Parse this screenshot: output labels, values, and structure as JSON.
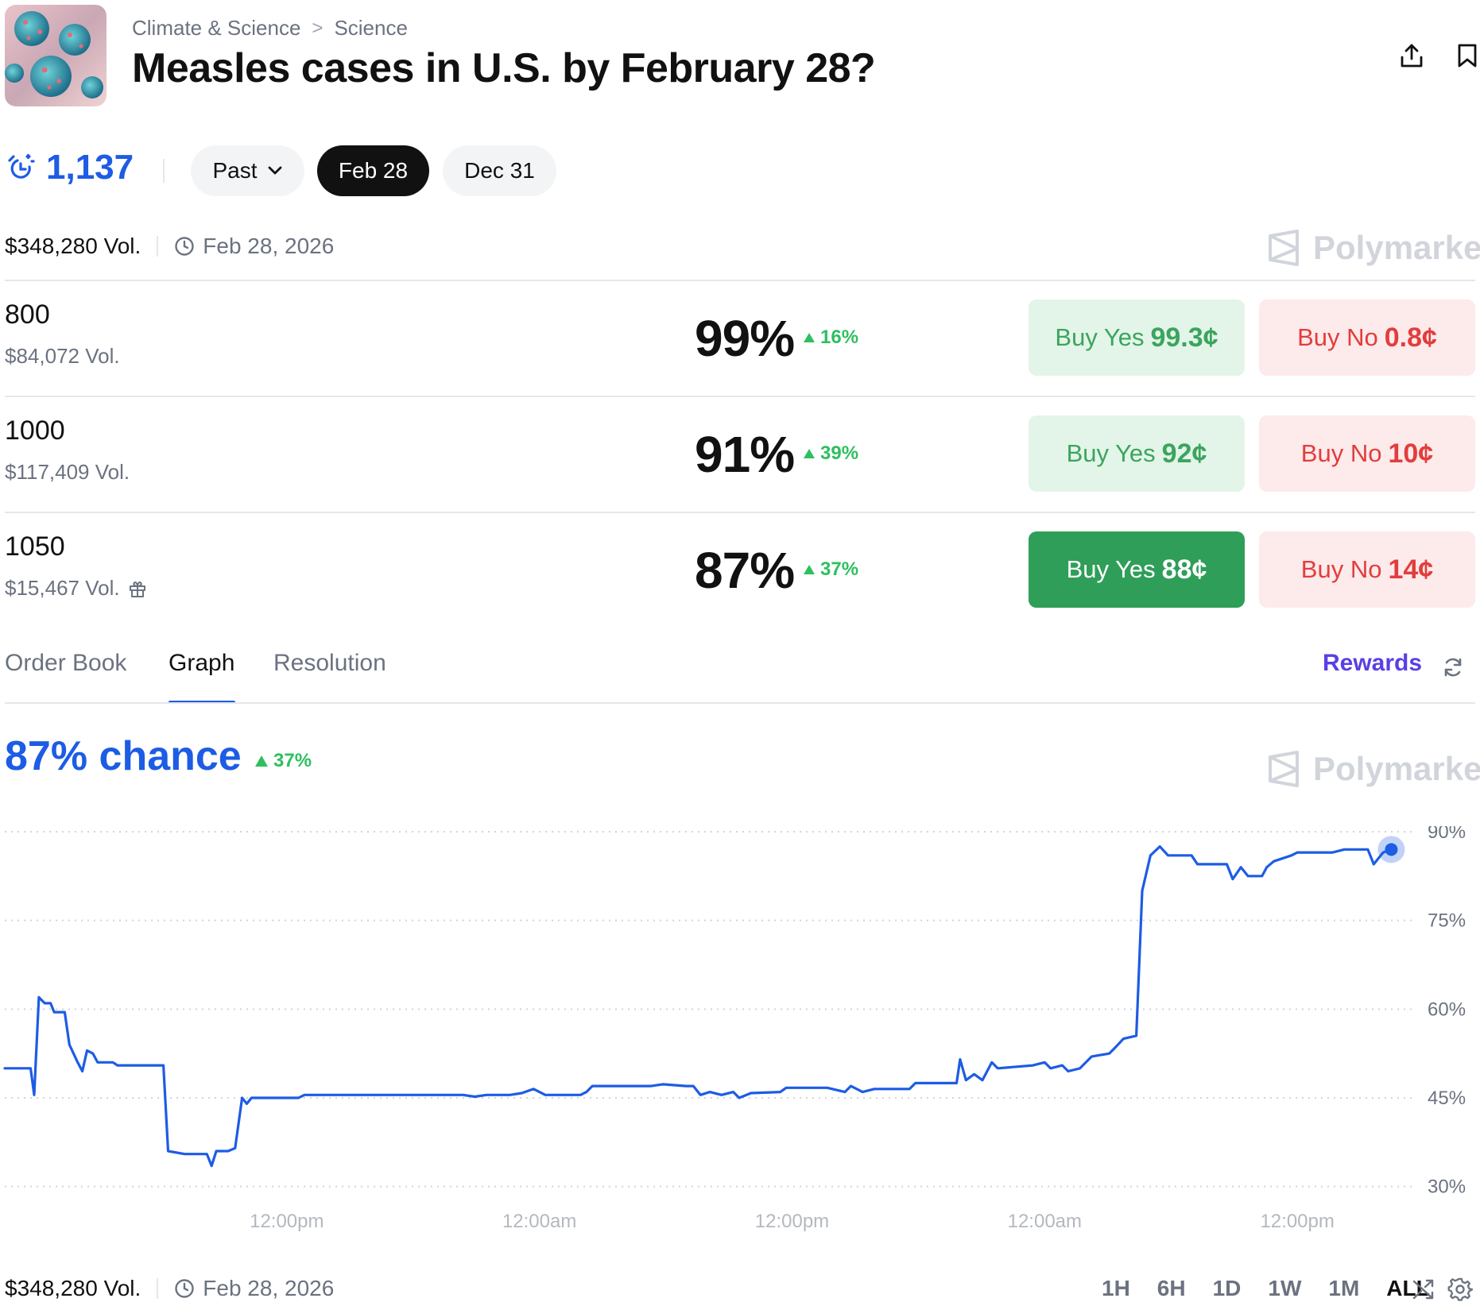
{
  "header": {
    "breadcrumb": [
      "Climate & Science",
      "Science"
    ],
    "breadcrumb_separator": ">",
    "title": "Measles cases in U.S. by February 28?",
    "icons": [
      "share-icon",
      "bookmark-icon"
    ]
  },
  "stats": {
    "count": "1,137",
    "count_icon": "alarm-icon"
  },
  "date_pills": [
    {
      "label": "Past",
      "has_chevron": true,
      "selected": false
    },
    {
      "label": "Feb 28",
      "selected": true
    },
    {
      "label": "Dec 31",
      "selected": false
    }
  ],
  "summary": {
    "volume": "$348,280 Vol.",
    "end_date": "Feb 28, 2026",
    "brand": "Polymarket"
  },
  "outcomes": [
    {
      "label": "800",
      "volume": "$84,072 Vol.",
      "percent": "99%",
      "change": "16%",
      "yes_label": "Buy Yes",
      "yes_price": "99.3¢",
      "no_label": "Buy No",
      "no_price": "0.8¢",
      "yes_active": false
    },
    {
      "label": "1000",
      "volume": "$117,409 Vol.",
      "percent": "91%",
      "change": "39%",
      "yes_label": "Buy Yes",
      "yes_price": "92¢",
      "no_label": "Buy No",
      "no_price": "10¢",
      "yes_active": false
    },
    {
      "label": "1050",
      "volume": "$15,467 Vol.",
      "percent": "87%",
      "change": "37%",
      "yes_label": "Buy Yes",
      "yes_price": "88¢",
      "no_label": "Buy No",
      "no_price": "14¢",
      "yes_active": true,
      "has_gift_icon": true
    }
  ],
  "tabs": [
    {
      "label": "Order Book",
      "active": false
    },
    {
      "label": "Graph",
      "active": true
    },
    {
      "label": "Resolution",
      "active": false
    }
  ],
  "rewards_label": "Rewards",
  "chance": {
    "label": "87% chance",
    "change": "37%"
  },
  "chart_data": {
    "type": "line",
    "series": [
      {
        "color": "#1d5ce4",
        "points": [
          [
            0,
            50
          ],
          [
            2.2,
            50
          ],
          [
            2.5,
            45.5
          ],
          [
            2.9,
            62
          ],
          [
            3.4,
            61
          ],
          [
            3.9,
            61
          ],
          [
            4.2,
            59.5
          ],
          [
            5.1,
            59.5
          ],
          [
            5.5,
            54
          ],
          [
            6.2,
            51
          ],
          [
            6.6,
            49.5
          ],
          [
            7.0,
            53
          ],
          [
            7.5,
            52.5
          ],
          [
            7.9,
            51
          ],
          [
            9.2,
            51
          ],
          [
            9.6,
            50.5
          ],
          [
            13.5,
            50.5
          ],
          [
            13.9,
            36
          ],
          [
            15.3,
            35.5
          ],
          [
            16.5,
            35.5
          ],
          [
            17.2,
            35.5
          ],
          [
            17.6,
            33.5
          ],
          [
            18.0,
            36
          ],
          [
            19.0,
            36
          ],
          [
            19.6,
            36.5
          ],
          [
            20.2,
            45
          ],
          [
            20.6,
            44
          ],
          [
            21.0,
            45
          ],
          [
            25.0,
            45
          ],
          [
            25.5,
            45.5
          ],
          [
            39.0,
            45.5
          ],
          [
            40.0,
            45.2
          ],
          [
            41.0,
            45.5
          ],
          [
            43.0,
            45.5
          ],
          [
            44.0,
            45.8
          ],
          [
            45.0,
            46.5
          ],
          [
            46.0,
            45.5
          ],
          [
            47.0,
            45.5
          ],
          [
            49.0,
            45.5
          ],
          [
            49.5,
            46
          ],
          [
            50.0,
            47
          ],
          [
            55.0,
            47
          ],
          [
            56.0,
            47.3
          ],
          [
            58.0,
            47
          ],
          [
            58.6,
            47
          ],
          [
            59.2,
            45.5
          ],
          [
            60.0,
            46
          ],
          [
            61.0,
            45.5
          ],
          [
            62.0,
            46
          ],
          [
            62.5,
            45
          ],
          [
            63.5,
            45.8
          ],
          [
            66.0,
            46
          ],
          [
            66.5,
            46.7
          ],
          [
            70.0,
            46.7
          ],
          [
            71.5,
            46
          ],
          [
            72.0,
            47
          ],
          [
            73.0,
            46
          ],
          [
            74.0,
            46.5
          ],
          [
            77.0,
            46.5
          ],
          [
            77.5,
            47.5
          ],
          [
            81.0,
            47.5
          ],
          [
            81.3,
            51.5
          ],
          [
            81.8,
            48
          ],
          [
            82.5,
            49
          ],
          [
            83.2,
            48
          ],
          [
            84.0,
            51
          ],
          [
            84.5,
            50
          ],
          [
            87.5,
            50.5
          ],
          [
            88.5,
            51
          ],
          [
            89.0,
            50
          ],
          [
            90.0,
            50.5
          ],
          [
            90.5,
            49.5
          ],
          [
            91.5,
            50
          ],
          [
            92.5,
            52
          ],
          [
            94.0,
            52.5
          ],
          [
            94.5,
            53.5
          ],
          [
            95.2,
            55
          ],
          [
            96.3,
            55.5
          ],
          [
            96.8,
            80
          ],
          [
            97.5,
            86
          ],
          [
            98.3,
            87.5
          ],
          [
            99.0,
            86
          ],
          [
            101.0,
            86
          ],
          [
            101.5,
            84.5
          ],
          [
            104.0,
            84.5
          ],
          [
            104.5,
            82
          ],
          [
            105.2,
            84
          ],
          [
            105.8,
            82.5
          ],
          [
            107.0,
            82.5
          ],
          [
            107.4,
            84
          ],
          [
            108.0,
            85
          ],
          [
            109.5,
            86
          ],
          [
            110.0,
            86.5
          ],
          [
            113.0,
            86.5
          ],
          [
            114.0,
            87
          ],
          [
            116.0,
            87
          ],
          [
            116.5,
            84.5
          ],
          [
            117.3,
            86.5
          ],
          [
            118.0,
            87
          ]
        ]
      }
    ],
    "x_range": [
      0,
      120
    ],
    "y_range": [
      25,
      95
    ],
    "y_ticks": [
      {
        "value": 90,
        "label": "90%"
      },
      {
        "value": 75,
        "label": "75%"
      },
      {
        "value": 60,
        "label": "60%"
      },
      {
        "value": 45,
        "label": "45%"
      },
      {
        "value": 30,
        "label": "30%"
      }
    ],
    "x_ticks": [
      {
        "value": 24,
        "label": "12:00pm"
      },
      {
        "value": 45.5,
        "label": "12:00am"
      },
      {
        "value": 67,
        "label": "12:00pm"
      },
      {
        "value": 88.5,
        "label": "12:00am"
      },
      {
        "value": 110,
        "label": "12:00pm"
      }
    ],
    "grid": true,
    "grid_style": "dotted"
  },
  "range_buttons": [
    {
      "label": "1H",
      "active": false
    },
    {
      "label": "6H",
      "active": false
    },
    {
      "label": "1D",
      "active": false
    },
    {
      "label": "1W",
      "active": false
    },
    {
      "label": "1M",
      "active": false
    },
    {
      "label": "ALL",
      "active": true
    }
  ],
  "footer_icons": [
    "shuffle-icon",
    "gear-icon"
  ]
}
